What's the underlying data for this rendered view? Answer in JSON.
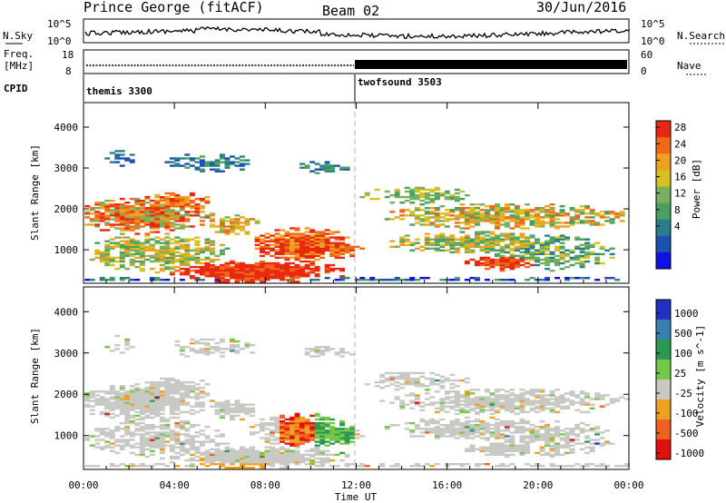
{
  "header": {
    "radar": "Prince George (fitACF)",
    "beam": "Beam 02",
    "date": "30/Jun/2016"
  },
  "top_panels": {
    "nsky_label": "N.Sky",
    "nsky_ticks": [
      "10^5",
      "10^0"
    ],
    "nsearch_label": "N.Search",
    "nsearch_ticks": [
      "10^5",
      "10^0"
    ],
    "freq_label_1": "Freq.",
    "freq_label_2": "[MHz]",
    "freq_ticks": [
      "18",
      "8"
    ],
    "nave_label": "Nave",
    "nave_ticks": [
      "60",
      "0"
    ],
    "cpid_label": "CPID",
    "cpid_segments": [
      {
        "name": "themis 3300",
        "start_ut": 0,
        "end_ut": 12
      },
      {
        "name": "twofsound 3503",
        "start_ut": 12,
        "end_ut": 24
      }
    ]
  },
  "chart_data": [
    {
      "type": "heatmap",
      "title": "",
      "xlabel": "",
      "ylabel": "Slant Range [km]",
      "xlim": [
        0,
        24
      ],
      "ylim": [
        180,
        4600
      ],
      "y_ticks": [
        "1000",
        "2000",
        "3000",
        "4000"
      ],
      "colorbar_label": "Power [dB]",
      "colorbar_ticks": [
        "4",
        "8",
        "12",
        "16",
        "20",
        "24",
        "28"
      ],
      "colorbar_colors": [
        "#1010e0",
        "#1e50b4",
        "#2a7e8a",
        "#4aa060",
        "#78b060",
        "#d8c020",
        "#f0a020",
        "#f06818",
        "#e82810"
      ]
    },
    {
      "type": "heatmap",
      "title": "",
      "xlabel": "Time UT",
      "ylabel": "Slant Range [km]",
      "xlim": [
        0,
        24
      ],
      "ylim": [
        180,
        4600
      ],
      "y_ticks": [
        "1000",
        "2000",
        "3000",
        "4000"
      ],
      "x_ticks": [
        "00:00",
        "04:00",
        "08:00",
        "12:00",
        "16:00",
        "20:00",
        "00:00"
      ],
      "colorbar_label": "Velocity [m s^-1]",
      "colorbar_ticks": [
        "1000",
        "500",
        "100",
        "25",
        "-25",
        "-100",
        "-500",
        "-1000"
      ],
      "colorbar_colors": [
        "#2030c0",
        "#3880b0",
        "#2c9850",
        "#74c848",
        "#c8c8c4",
        "#f0a020",
        "#f06020",
        "#e01010"
      ]
    }
  ]
}
